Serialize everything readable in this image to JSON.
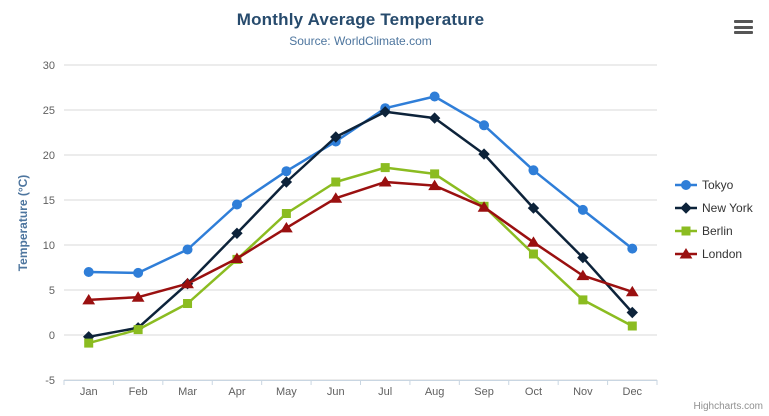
{
  "header": {
    "title": "Monthly Average Temperature",
    "subtitle": "Source: WorldClimate.com"
  },
  "credits": {
    "label": "Highcharts.com"
  },
  "menu": {
    "icon": "hamburger-menu-icon"
  },
  "colors": {
    "title": "#274b6d",
    "subtitle": "#4d759e",
    "axis_title": "#4d759e",
    "tick_label": "#606060",
    "gridline": "#d8d8d8",
    "axis_line": "#c9d6e2",
    "legend_text": "#333333",
    "credits": "#909090"
  },
  "chart_data": {
    "type": "line",
    "title": "Monthly Average Temperature",
    "subtitle": "Source: WorldClimate.com",
    "xlabel": "",
    "ylabel": "Temperature (°C)",
    "categories": [
      "Jan",
      "Feb",
      "Mar",
      "Apr",
      "May",
      "Jun",
      "Jul",
      "Aug",
      "Sep",
      "Oct",
      "Nov",
      "Dec"
    ],
    "series": [
      {
        "name": "Tokyo",
        "color": "#2f7ed8",
        "marker": "circle",
        "values": [
          7.0,
          6.9,
          9.5,
          14.5,
          18.2,
          21.5,
          25.2,
          26.5,
          23.3,
          18.3,
          13.9,
          9.6
        ]
      },
      {
        "name": "New York",
        "color": "#0d233a",
        "marker": "diamond",
        "values": [
          -0.2,
          0.8,
          5.7,
          11.3,
          17.0,
          22.0,
          24.8,
          24.1,
          20.1,
          14.1,
          8.6,
          2.5
        ]
      },
      {
        "name": "Berlin",
        "color": "#8bbc21",
        "marker": "square",
        "values": [
          -0.9,
          0.6,
          3.5,
          8.4,
          13.5,
          17.0,
          18.6,
          17.9,
          14.3,
          9.0,
          3.9,
          1.0
        ]
      },
      {
        "name": "London",
        "color": "#9a1010",
        "marker": "triangle",
        "values": [
          3.9,
          4.2,
          5.7,
          8.5,
          11.9,
          15.2,
          17.0,
          16.6,
          14.2,
          10.3,
          6.6,
          4.8
        ]
      }
    ],
    "ylim": [
      -5,
      30
    ],
    "yticks": [
      -5,
      0,
      5,
      10,
      15,
      20,
      25,
      30
    ],
    "grid": true,
    "legend_position": "right"
  }
}
